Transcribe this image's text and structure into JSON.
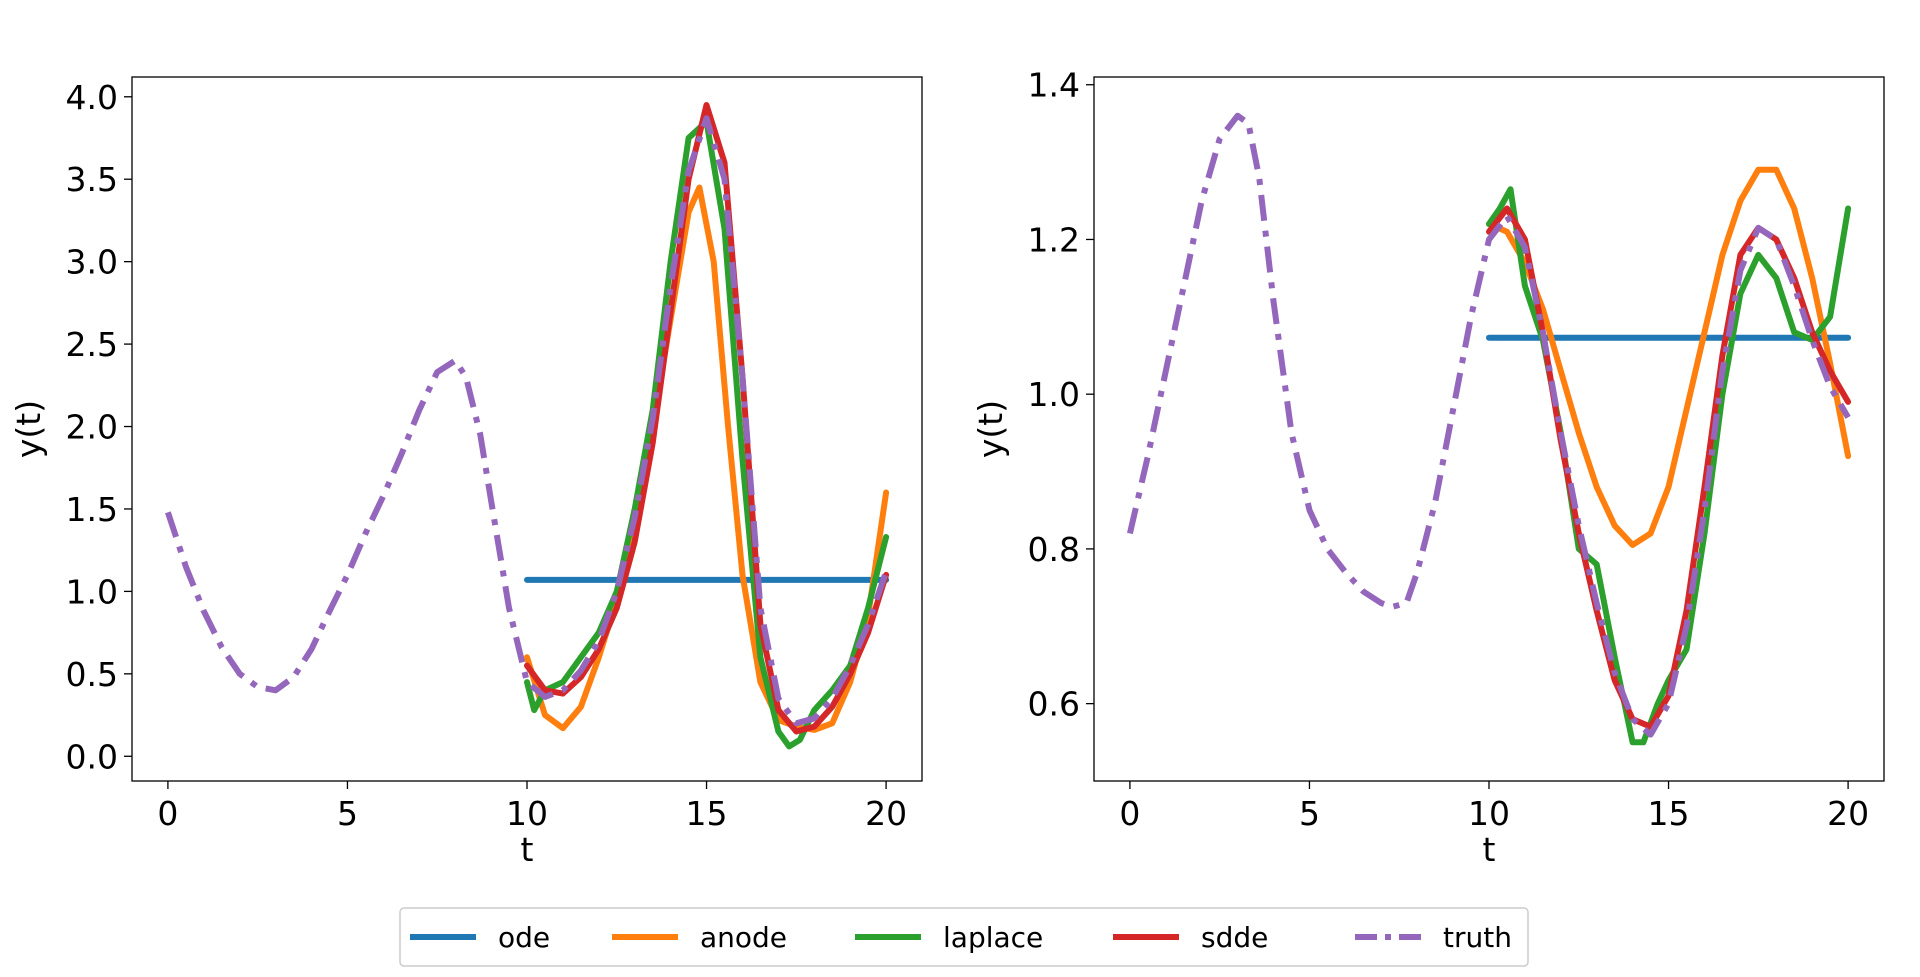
{
  "chart_data": [
    {
      "type": "line",
      "xlabel": "t",
      "ylabel": "y(t)",
      "xlim": [
        -1,
        21
      ],
      "ylim": [
        -0.15,
        4.12
      ],
      "xticks": [
        0,
        5,
        10,
        15,
        20
      ],
      "xtick_labels": [
        "0",
        "5",
        "10",
        "15",
        "20"
      ],
      "yticks": [
        0.0,
        0.5,
        1.0,
        1.5,
        2.0,
        2.5,
        3.0,
        3.5,
        4.0
      ],
      "ytick_labels": [
        "0.0",
        "0.5",
        "1.0",
        "1.5",
        "2.0",
        "2.5",
        "3.0",
        "3.5",
        "4.0"
      ],
      "grid": false,
      "series": [
        {
          "name": "ode",
          "color": "#1f77b4",
          "style": "solid",
          "x": [
            10,
            20
          ],
          "y": [
            1.07,
            1.07
          ]
        },
        {
          "name": "anode",
          "color": "#ff7f0e",
          "style": "solid",
          "x": [
            10,
            10.5,
            11,
            11.5,
            12,
            12.5,
            13,
            13.5,
            14,
            14.5,
            14.8,
            15.2,
            15.6,
            16,
            16.5,
            17,
            17.5,
            18,
            18.5,
            19,
            19.5,
            20
          ],
          "y": [
            0.6,
            0.25,
            0.17,
            0.3,
            0.6,
            0.95,
            1.45,
            2.0,
            2.65,
            3.3,
            3.45,
            3.0,
            2.0,
            1.1,
            0.45,
            0.22,
            0.18,
            0.16,
            0.2,
            0.45,
            0.85,
            1.6
          ]
        },
        {
          "name": "laplace",
          "color": "#2ca02c",
          "style": "solid",
          "x": [
            10,
            10.2,
            10.5,
            11,
            11.5,
            12,
            12.5,
            13,
            13.5,
            14,
            14.5,
            15,
            15.5,
            16,
            16.5,
            17,
            17.3,
            17.6,
            18,
            18.5,
            19,
            19.5,
            20
          ],
          "y": [
            0.45,
            0.28,
            0.4,
            0.45,
            0.6,
            0.75,
            1.0,
            1.5,
            2.1,
            3.0,
            3.75,
            3.85,
            3.2,
            1.8,
            0.6,
            0.15,
            0.06,
            0.1,
            0.28,
            0.4,
            0.55,
            0.9,
            1.33
          ]
        },
        {
          "name": "sdde",
          "color": "#d62728",
          "style": "solid",
          "x": [
            10,
            10.5,
            11,
            11.5,
            12,
            12.5,
            13,
            13.5,
            14,
            14.5,
            15,
            15.5,
            16,
            16.5,
            17,
            17.5,
            18,
            18.5,
            19,
            19.5,
            20
          ],
          "y": [
            0.55,
            0.4,
            0.38,
            0.48,
            0.65,
            0.9,
            1.3,
            1.9,
            2.7,
            3.5,
            3.95,
            3.6,
            2.3,
            0.8,
            0.28,
            0.15,
            0.18,
            0.3,
            0.5,
            0.75,
            1.1
          ]
        },
        {
          "name": "truth",
          "color": "#9467bd",
          "style": "dashdot",
          "x": [
            0,
            0.5,
            1,
            1.5,
            2,
            2.5,
            3,
            3.5,
            4,
            4.5,
            5,
            5.5,
            6,
            6.5,
            7,
            7.5,
            8,
            8.3,
            8.7,
            9,
            9.5,
            10,
            10.5,
            11,
            11.5,
            12,
            12.5,
            13,
            13.5,
            14,
            14.5,
            15,
            15.5,
            16,
            16.5,
            17,
            17.5,
            18,
            18.5,
            19,
            19.5,
            20
          ],
          "y": [
            1.48,
            1.15,
            0.88,
            0.66,
            0.5,
            0.42,
            0.4,
            0.48,
            0.65,
            0.88,
            1.1,
            1.35,
            1.58,
            1.83,
            2.1,
            2.33,
            2.4,
            2.3,
            1.95,
            1.55,
            0.9,
            0.45,
            0.36,
            0.4,
            0.52,
            0.7,
            1.0,
            1.45,
            2.05,
            2.85,
            3.55,
            3.87,
            3.5,
            2.3,
            0.9,
            0.35,
            0.2,
            0.23,
            0.35,
            0.55,
            0.8,
            1.12
          ]
        }
      ]
    },
    {
      "type": "line",
      "xlabel": "t",
      "ylabel": "y(t)",
      "xlim": [
        -1,
        21
      ],
      "ylim": [
        0.5,
        1.41
      ],
      "xticks": [
        0,
        5,
        10,
        15,
        20
      ],
      "xtick_labels": [
        "0",
        "5",
        "10",
        "15",
        "20"
      ],
      "yticks": [
        0.6,
        0.8,
        1.0,
        1.2,
        1.4
      ],
      "ytick_labels": [
        "0.6",
        "0.8",
        "1.0",
        "1.2",
        "1.4"
      ],
      "grid": false,
      "series": [
        {
          "name": "ode",
          "color": "#1f77b4",
          "style": "solid",
          "x": [
            10,
            20
          ],
          "y": [
            1.073,
            1.073
          ]
        },
        {
          "name": "anode",
          "color": "#ff7f0e",
          "style": "solid",
          "x": [
            10,
            10.5,
            11,
            11.5,
            12,
            12.5,
            13,
            13.5,
            14,
            14.5,
            15,
            15.5,
            16,
            16.5,
            17,
            17.5,
            18,
            18.5,
            19,
            19.5,
            20
          ],
          "y": [
            1.22,
            1.21,
            1.17,
            1.11,
            1.03,
            0.95,
            0.88,
            0.83,
            0.805,
            0.82,
            0.88,
            0.98,
            1.08,
            1.18,
            1.25,
            1.29,
            1.29,
            1.24,
            1.15,
            1.04,
            0.92
          ]
        },
        {
          "name": "laplace",
          "color": "#2ca02c",
          "style": "solid",
          "x": [
            10,
            10.3,
            10.6,
            11,
            11.5,
            12,
            12.5,
            13,
            13.5,
            14,
            14.3,
            14.7,
            15,
            15.5,
            16,
            16.5,
            17,
            17.5,
            18,
            18.5,
            19,
            19.5,
            20
          ],
          "y": [
            1.22,
            1.24,
            1.265,
            1.14,
            1.07,
            0.95,
            0.8,
            0.78,
            0.66,
            0.55,
            0.55,
            0.6,
            0.63,
            0.67,
            0.82,
            1.0,
            1.13,
            1.18,
            1.15,
            1.08,
            1.07,
            1.1,
            1.24
          ]
        },
        {
          "name": "sdde",
          "color": "#d62728",
          "style": "solid",
          "x": [
            10,
            10.5,
            11,
            11.5,
            12,
            12.5,
            13,
            13.5,
            14,
            14.5,
            15,
            15.5,
            16,
            16.5,
            17,
            17.5,
            18,
            18.5,
            19,
            19.5,
            20
          ],
          "y": [
            1.21,
            1.24,
            1.2,
            1.08,
            0.94,
            0.82,
            0.72,
            0.63,
            0.58,
            0.57,
            0.61,
            0.72,
            0.88,
            1.05,
            1.18,
            1.215,
            1.2,
            1.15,
            1.08,
            1.03,
            0.99
          ]
        },
        {
          "name": "truth",
          "color": "#9467bd",
          "style": "dashdot",
          "x": [
            0,
            0.5,
            1,
            1.5,
            2,
            2.5,
            3,
            3.3,
            3.6,
            4,
            4.5,
            5,
            5.5,
            6,
            6.5,
            7,
            7.3,
            7.7,
            8,
            8.5,
            9,
            9.5,
            10,
            10.5,
            11,
            11.5,
            12,
            12.5,
            13,
            13.5,
            14,
            14.5,
            15,
            15.5,
            16,
            16.5,
            17,
            17.5,
            18,
            18.5,
            19,
            19.5,
            20
          ],
          "y": [
            0.82,
            0.92,
            1.03,
            1.14,
            1.25,
            1.33,
            1.36,
            1.35,
            1.28,
            1.12,
            0.95,
            0.85,
            0.8,
            0.77,
            0.745,
            0.73,
            0.725,
            0.73,
            0.77,
            0.86,
            0.98,
            1.1,
            1.2,
            1.23,
            1.19,
            1.08,
            0.95,
            0.83,
            0.73,
            0.64,
            0.58,
            0.56,
            0.6,
            0.7,
            0.85,
            1.03,
            1.16,
            1.215,
            1.2,
            1.14,
            1.07,
            1.01,
            0.97
          ]
        }
      ]
    }
  ],
  "legend": {
    "placement": "bottom-center",
    "items": [
      {
        "label": "ode",
        "color": "#1f77b4",
        "style": "solid"
      },
      {
        "label": "anode",
        "color": "#ff7f0e",
        "style": "solid"
      },
      {
        "label": "laplace",
        "color": "#2ca02c",
        "style": "solid"
      },
      {
        "label": "sdde",
        "color": "#d62728",
        "style": "solid"
      },
      {
        "label": "truth",
        "color": "#9467bd",
        "style": "dashdot"
      }
    ]
  }
}
